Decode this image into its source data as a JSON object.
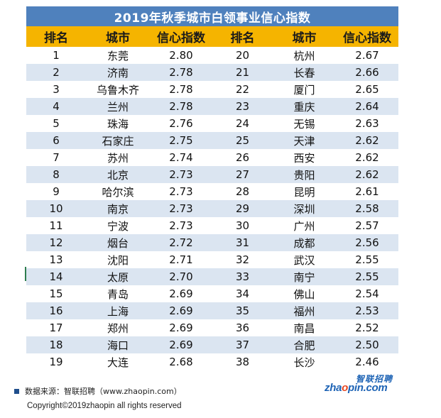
{
  "title": "2019年秋季城市白领事业信心指数",
  "headers": [
    "排名",
    "城市",
    "信心指数",
    "排名",
    "城市",
    "信心指数"
  ],
  "rows": [
    [
      "1",
      "东莞",
      "2.80",
      "20",
      "杭州",
      "2.67"
    ],
    [
      "2",
      "济南",
      "2.78",
      "21",
      "长春",
      "2.66"
    ],
    [
      "3",
      "乌鲁木齐",
      "2.78",
      "22",
      "厦门",
      "2.65"
    ],
    [
      "4",
      "兰州",
      "2.78",
      "23",
      "重庆",
      "2.64"
    ],
    [
      "5",
      "珠海",
      "2.76",
      "24",
      "无锡",
      "2.63"
    ],
    [
      "6",
      "石家庄",
      "2.75",
      "25",
      "天津",
      "2.62"
    ],
    [
      "7",
      "苏州",
      "2.74",
      "26",
      "西安",
      "2.62"
    ],
    [
      "8",
      "北京",
      "2.73",
      "27",
      "贵阳",
      "2.62"
    ],
    [
      "9",
      "哈尔滨",
      "2.73",
      "28",
      "昆明",
      "2.61"
    ],
    [
      "10",
      "南京",
      "2.73",
      "29",
      "深圳",
      "2.58"
    ],
    [
      "11",
      "宁波",
      "2.73",
      "30",
      "广州",
      "2.57"
    ],
    [
      "12",
      "烟台",
      "2.72",
      "31",
      "成都",
      "2.56"
    ],
    [
      "13",
      "沈阳",
      "2.71",
      "32",
      "武汉",
      "2.55"
    ],
    [
      "14",
      "太原",
      "2.70",
      "33",
      "南宁",
      "2.55"
    ],
    [
      "15",
      "青岛",
      "2.69",
      "34",
      "佛山",
      "2.54"
    ],
    [
      "16",
      "上海",
      "2.69",
      "35",
      "福州",
      "2.53"
    ],
    [
      "17",
      "郑州",
      "2.69",
      "36",
      "南昌",
      "2.52"
    ],
    [
      "18",
      "海口",
      "2.69",
      "37",
      "合肥",
      "2.50"
    ],
    [
      "19",
      "大连",
      "2.68",
      "38",
      "长沙",
      "2.46"
    ]
  ],
  "footer": {
    "source": "数据来源：智联招聘（www.zhaopin.com）",
    "copyright": "Copyright©2019zhaopin all rights reserved"
  },
  "logo": {
    "cn": "智联招聘",
    "en_prefix": "zha",
    "en_dot": "o",
    "en_suffix": "pin.com"
  },
  "colors": {
    "title_bg": "#4f81bd",
    "header_bg": "#f5b400",
    "stripe": "#dbe5f1",
    "logo_blue": "#1d63b5",
    "logo_accent": "#e8451e"
  }
}
